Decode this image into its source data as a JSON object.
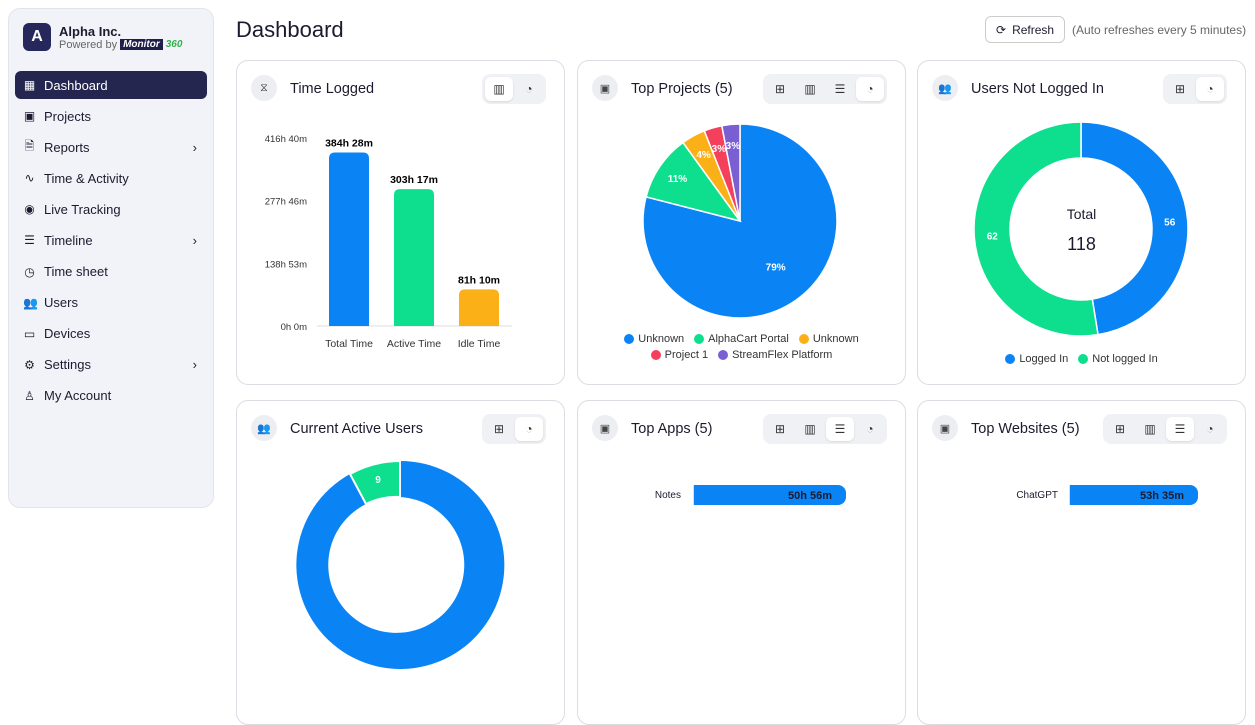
{
  "brand": {
    "initial": "A",
    "name": "Alpha Inc.",
    "powered": "Powered by",
    "logo": "Monitor360"
  },
  "nav": [
    {
      "label": "Dashboard",
      "icon": "grid-icon",
      "active": true
    },
    {
      "label": "Projects",
      "icon": "folder-icon"
    },
    {
      "label": "Reports",
      "icon": "file-icon",
      "chevron": true
    },
    {
      "label": "Time & Activity",
      "icon": "activity-icon"
    },
    {
      "label": "Live Tracking",
      "icon": "broadcast-icon"
    },
    {
      "label": "Timeline",
      "icon": "timeline-icon",
      "chevron": true
    },
    {
      "label": "Time sheet",
      "icon": "timer-icon"
    },
    {
      "label": "Users",
      "icon": "users-icon"
    },
    {
      "label": "Devices",
      "icon": "monitor-icon"
    },
    {
      "label": "Settings",
      "icon": "gear-icon",
      "chevron": true
    },
    {
      "label": "My Account",
      "icon": "user-icon"
    }
  ],
  "header": {
    "title": "Dashboard",
    "refresh": "Refresh",
    "auto": "(Auto refreshes every 5 minutes)"
  },
  "cards": {
    "time_logged": {
      "title": "Time Logged"
    },
    "top_projects": {
      "title": "Top Projects (5)"
    },
    "users_not_logged": {
      "title": "Users Not Logged In",
      "center_label": "Total",
      "center_value": "118"
    },
    "current_active": {
      "title": "Current Active Users"
    },
    "top_apps": {
      "title": "Top Apps (5)"
    },
    "top_websites": {
      "title": "Top Websites (5)"
    }
  },
  "colors": {
    "blue": "#0a84f5",
    "green": "#0ddf8f",
    "orange": "#fbb018",
    "red": "#f5405c",
    "purple": "#7a5fd2"
  },
  "chart_data": [
    {
      "type": "bar",
      "title": "Time Logged",
      "categories": [
        "Total Time",
        "Active Time",
        "Idle Time"
      ],
      "values": [
        384.47,
        303.28,
        81.17
      ],
      "labels": [
        "384h 28m",
        "303h 17m",
        "81h 10m"
      ],
      "yticks": [
        "0h 0m",
        "138h 53m",
        "277h 46m",
        "416h 40m"
      ],
      "ylim": [
        0,
        416.67
      ],
      "colors": [
        "#0a84f5",
        "#0ddf8f",
        "#fbb018"
      ]
    },
    {
      "type": "pie",
      "title": "Top Projects (5)",
      "categories": [
        "Unknown",
        "AlphaCart Portal",
        "Unknown",
        "Project 1",
        "StreamFlex Platform"
      ],
      "values": [
        79,
        11,
        4,
        3,
        3
      ],
      "labels": [
        "79%",
        "11%",
        "4%",
        "3%",
        "3%"
      ],
      "colors": [
        "#0a84f5",
        "#0ddf8f",
        "#fbb018",
        "#f5405c",
        "#7a5fd2"
      ],
      "legend": "bottom"
    },
    {
      "type": "pie",
      "title": "Users Not Logged In",
      "donut": true,
      "categories": [
        "Logged In",
        "Not logged In"
      ],
      "values": [
        56,
        62
      ],
      "colors": [
        "#0a84f5",
        "#0ddf8f"
      ],
      "legend": "bottom"
    },
    {
      "type": "pie",
      "title": "Current Active Users",
      "donut": true,
      "visible_labels": [
        "9"
      ],
      "values_partial": [
        9
      ]
    },
    {
      "type": "bar",
      "orientation": "horizontal",
      "title": "Top Apps (5)",
      "categories": [
        "Notes"
      ],
      "labels": [
        "50h 56m"
      ]
    },
    {
      "type": "bar",
      "orientation": "horizontal",
      "title": "Top Websites (5)",
      "categories": [
        "ChatGPT"
      ],
      "labels": [
        "53h 35m"
      ]
    }
  ]
}
